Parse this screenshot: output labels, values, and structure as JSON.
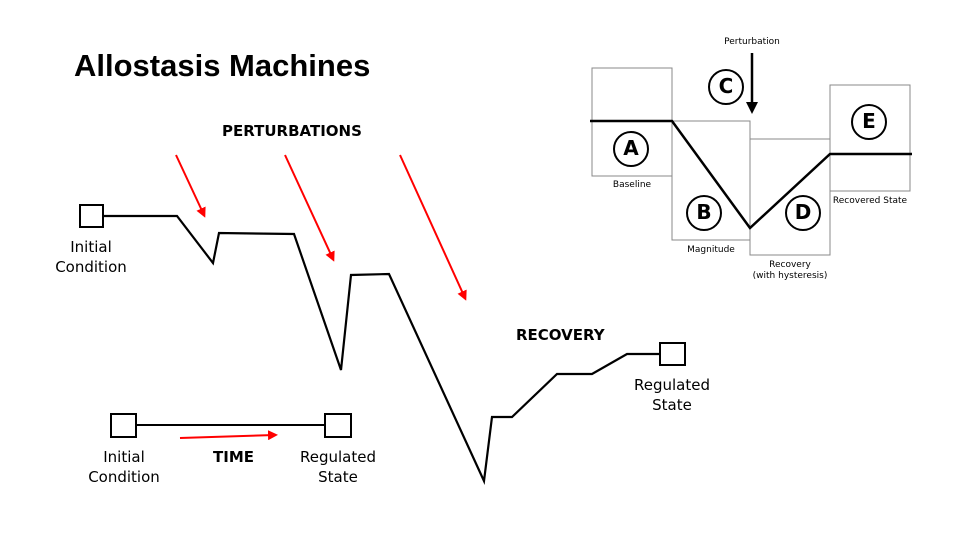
{
  "title": "Allostasis Machines",
  "main_diagram": {
    "perturbations_label": "PERTURBATIONS",
    "recovery_label": "RECOVERY",
    "start_label_line1": "Initial",
    "start_label_line2": "Condition",
    "end_label_line1": "Regulated",
    "end_label_line2": "State"
  },
  "time_legend": {
    "start_label_line1": "Initial",
    "start_label_line2": "Condition",
    "time_label": "TIME",
    "end_label_line1": "Regulated",
    "end_label_line2": "State"
  },
  "inset": {
    "perturbation_label": "Perturbation",
    "letters": [
      "A",
      "B",
      "C",
      "D",
      "E"
    ],
    "baseline_label": "Baseline",
    "magnitude_label": "Magnitude",
    "recovery_label_line1": "Recovery",
    "recovery_label_line2": "(with hysteresis)",
    "recovered_state_label": "Recovered State"
  },
  "colors": {
    "arrow": "#ff0000",
    "line": "#000000"
  }
}
